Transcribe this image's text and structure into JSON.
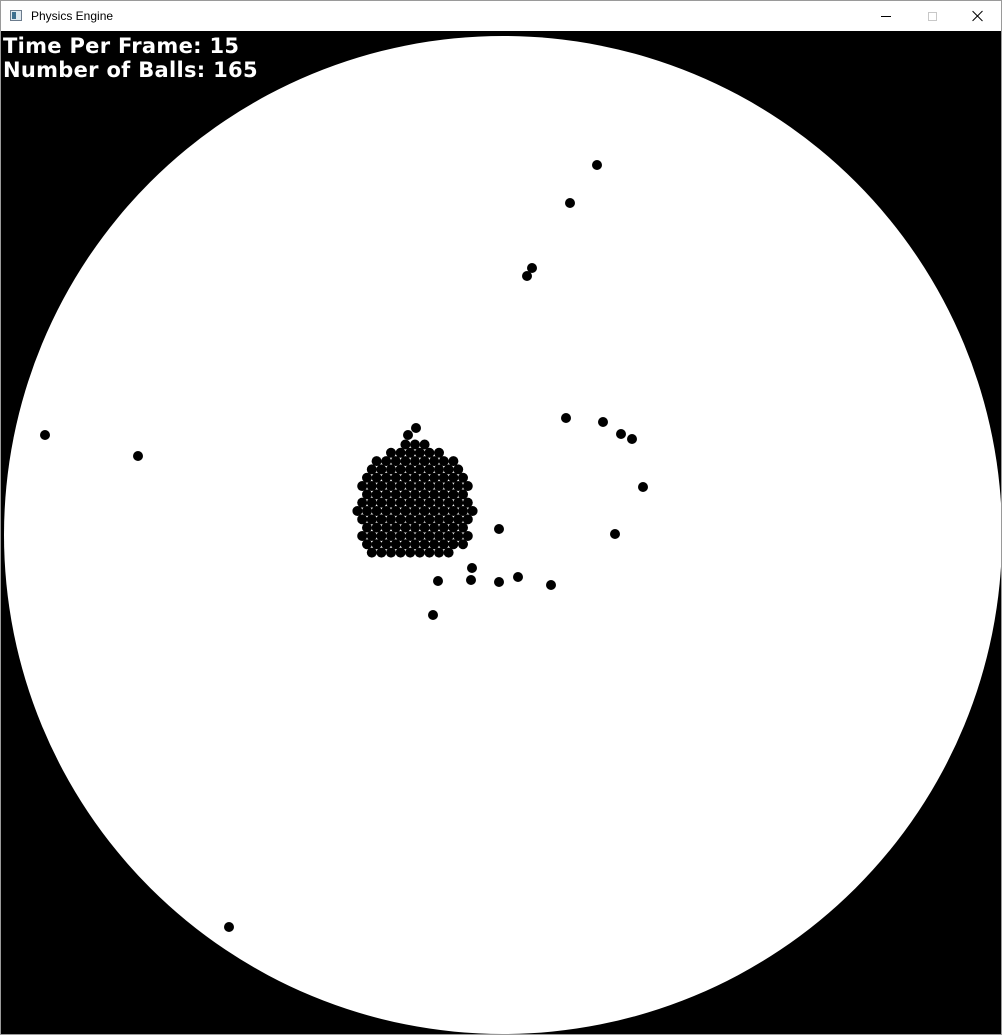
{
  "window": {
    "title": "Physics Engine",
    "icon": "app-window-icon"
  },
  "hud": {
    "time_per_frame_label": "Time Per Frame:",
    "time_per_frame_value": "15",
    "ball_count_label": "Number of Balls:",
    "ball_count_value": "165"
  },
  "colors": {
    "background": "#000000",
    "arena": "#ffffff",
    "ball": "#000000",
    "hud_text": "#ffffff"
  }
}
